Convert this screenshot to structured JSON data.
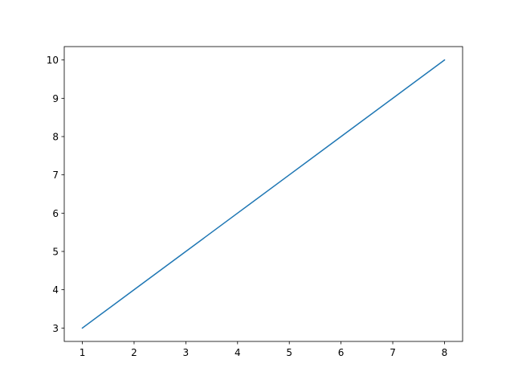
{
  "chart_data": {
    "type": "line",
    "title": "",
    "xlabel": "",
    "ylabel": "",
    "x": [
      1,
      2,
      3,
      4,
      5,
      6,
      7,
      8
    ],
    "series": [
      {
        "values": [
          3,
          4,
          5,
          6,
          7,
          8,
          9,
          10
        ],
        "color": "#1f77b4"
      }
    ],
    "xlim": [
      0.65,
      8.35
    ],
    "ylim": [
      2.65,
      10.35
    ],
    "xticks": [
      "1",
      "2",
      "3",
      "4",
      "5",
      "6",
      "7",
      "8"
    ],
    "yticks": [
      "3",
      "4",
      "5",
      "6",
      "7",
      "8",
      "9",
      "10"
    ],
    "grid": false
  }
}
